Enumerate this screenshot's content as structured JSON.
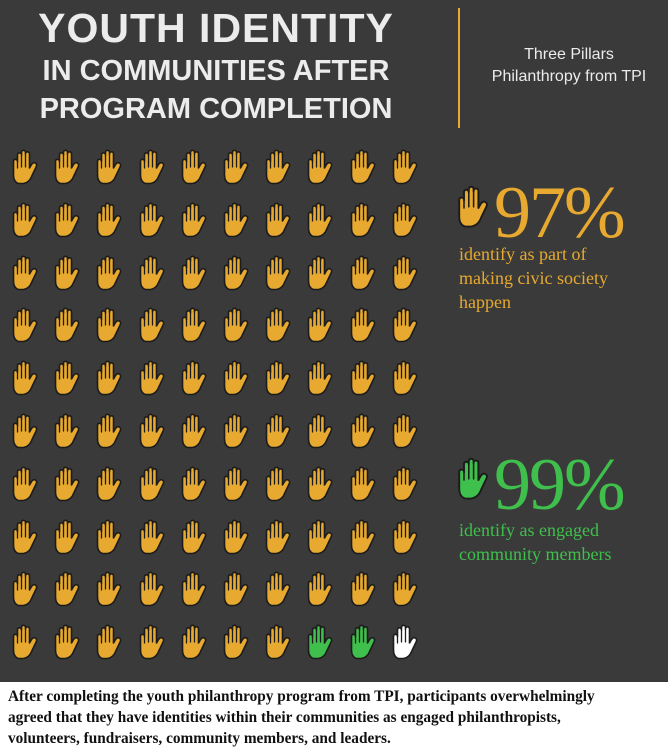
{
  "header": {
    "title_line1": "YOUTH IDENTITY",
    "title_line2": "IN COMMUNITIES AFTER",
    "title_line3": "PROGRAM COMPLETION",
    "organization_line1": "Three Pillars",
    "organization_line2": "Philanthropy from TPI"
  },
  "icon": "raised-hand-icon",
  "colors": {
    "background": "#3a3a3a",
    "gold": "#e7a92f",
    "green": "#3fbf4c",
    "white": "#ffffff",
    "outline": "#1c1c1c",
    "title_text": "#ececec"
  },
  "pictogram": {
    "rows": 10,
    "columns": 10,
    "hand_colors": [
      "gold",
      "gold",
      "gold",
      "gold",
      "gold",
      "gold",
      "gold",
      "gold",
      "gold",
      "gold",
      "gold",
      "gold",
      "gold",
      "gold",
      "gold",
      "gold",
      "gold",
      "gold",
      "gold",
      "gold",
      "gold",
      "gold",
      "gold",
      "gold",
      "gold",
      "gold",
      "gold",
      "gold",
      "gold",
      "gold",
      "gold",
      "gold",
      "gold",
      "gold",
      "gold",
      "gold",
      "gold",
      "gold",
      "gold",
      "gold",
      "gold",
      "gold",
      "gold",
      "gold",
      "gold",
      "gold",
      "gold",
      "gold",
      "gold",
      "gold",
      "gold",
      "gold",
      "gold",
      "gold",
      "gold",
      "gold",
      "gold",
      "gold",
      "gold",
      "gold",
      "gold",
      "gold",
      "gold",
      "gold",
      "gold",
      "gold",
      "gold",
      "gold",
      "gold",
      "gold",
      "gold",
      "gold",
      "gold",
      "gold",
      "gold",
      "gold",
      "gold",
      "gold",
      "gold",
      "gold",
      "gold",
      "gold",
      "gold",
      "gold",
      "gold",
      "gold",
      "gold",
      "gold",
      "gold",
      "gold",
      "gold",
      "gold",
      "gold",
      "gold",
      "gold",
      "gold",
      "gold",
      "green",
      "green",
      "white"
    ]
  },
  "stats": [
    {
      "value": "97%",
      "line1": "identify as part of",
      "line2": "making civic society",
      "line3": "happen",
      "color": "#e7a92f"
    },
    {
      "value": "99%",
      "line1": "identify as engaged",
      "line2": "community members",
      "color": "#3fbf4c"
    }
  ],
  "caption": {
    "line1": "After completing the youth philanthropy program from TPI, participants overwhelmingly",
    "line2": "agreed that they have identities within their communities as engaged philanthropists,",
    "line3": "volunteers, fundraisers, community members, and leaders."
  }
}
